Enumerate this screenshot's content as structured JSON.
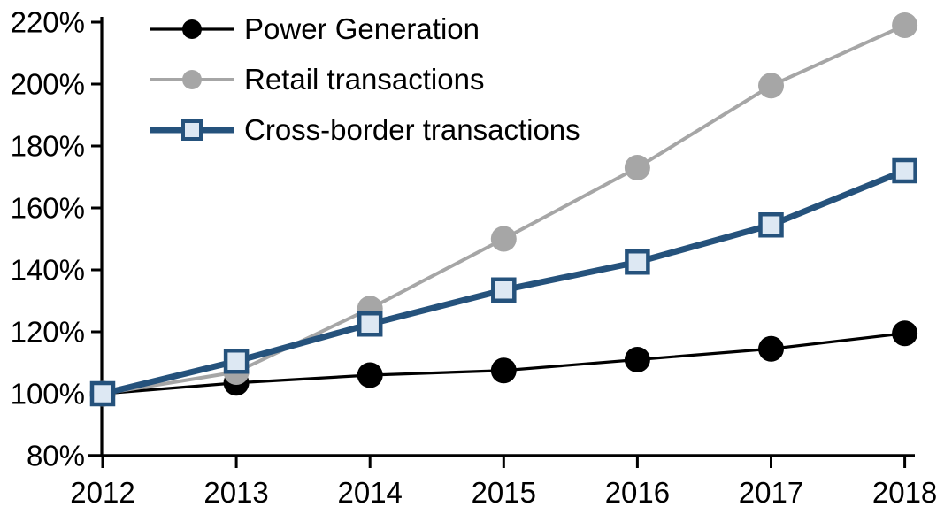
{
  "chart_data": {
    "type": "line",
    "title": "",
    "xlabel": "",
    "ylabel": "",
    "x": [
      "2012",
      "2013",
      "2014",
      "2015",
      "2016",
      "2017",
      "2018"
    ],
    "xtick_labels": [
      "2012",
      "2013",
      "2014",
      "2015",
      "2016",
      "2017",
      "2018"
    ],
    "ylim": [
      80,
      220
    ],
    "ytick_step": 20,
    "ytick_labels": [
      "80%",
      "100%",
      "120%",
      "140%",
      "160%",
      "180%",
      "200%",
      "220%"
    ],
    "grid": false,
    "legend_position": "top-left",
    "series": [
      {
        "name": "Power Generation",
        "line_color": "#000000",
        "line_width": 3.2,
        "marker": "circle",
        "marker_fill": "#000000",
        "marker_stroke": "#000000",
        "values": [
          100,
          103.5,
          106,
          107.5,
          111,
          114.5,
          119.5
        ]
      },
      {
        "name": "Retail transactions",
        "line_color": "#a6a6a6",
        "line_width": 4,
        "marker": "circle",
        "marker_fill": "#a6a6a6",
        "marker_stroke": "#a6a6a6",
        "values": [
          100,
          107,
          127.5,
          150,
          173,
          199.5,
          219
        ]
      },
      {
        "name": "Cross-border transactions",
        "line_color": "#25527c",
        "line_width": 7,
        "marker": "square",
        "marker_fill": "#dde8f3",
        "marker_stroke": "#25527c",
        "values": [
          100,
          110.5,
          122.5,
          133.5,
          142.5,
          154.5,
          172
        ]
      }
    ],
    "colors": {
      "background": "#ffffff",
      "axis": "#000000",
      "text": "#000000"
    }
  }
}
